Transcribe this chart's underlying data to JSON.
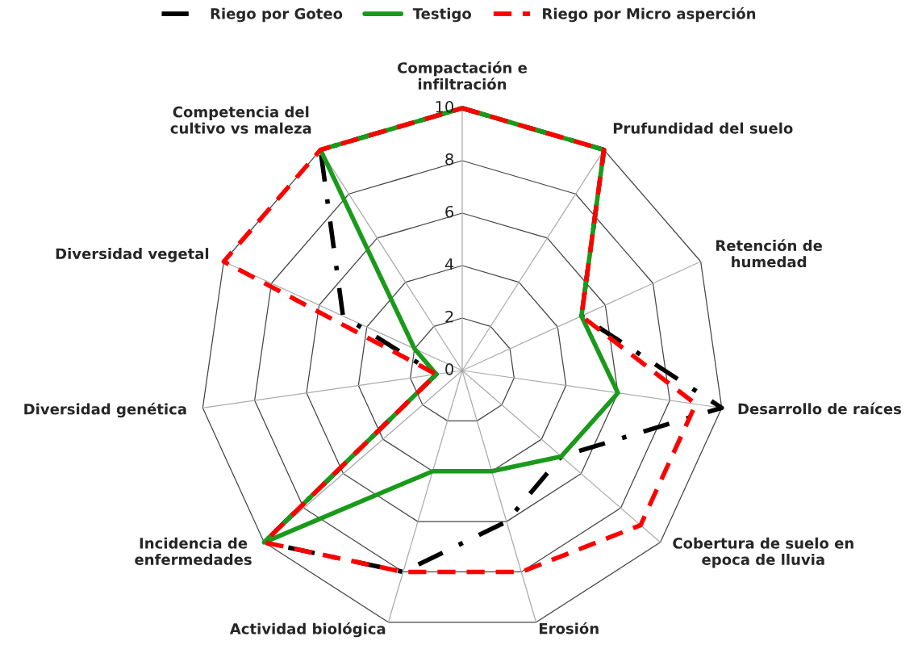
{
  "chart_data": {
    "type": "radar",
    "categories": [
      "Compactación e\ninfiltración",
      "Prufundidad del suelo",
      "Retención de\nhumedad",
      "Desarrollo de raíces",
      "Cobertura de suelo en\nepoca de lluvia",
      "Erosión",
      "Actividad biológica",
      "Incidencia de\nenfermedades",
      "Diversidad genética",
      "Diversidad vegetal",
      "Competencia del\ncultivo vs maleza"
    ],
    "series": [
      {
        "name": "Riego por Goteo",
        "color": "#000000",
        "line_style": "dashdot",
        "values": [
          10,
          10,
          5,
          10,
          5,
          6,
          8,
          10,
          1,
          5,
          10
        ]
      },
      {
        "name": "Testigo",
        "color": "#1a9a1a",
        "line_style": "solid",
        "values": [
          10,
          10,
          5,
          6,
          5,
          4,
          4,
          10,
          1,
          2,
          10
        ]
      },
      {
        "name": "Riego por Micro asperción",
        "color": "#ff0000",
        "line_style": "dashed",
        "values": [
          10,
          10,
          5,
          9,
          9,
          8,
          8,
          10,
          1,
          10,
          10
        ]
      }
    ],
    "ylim": [
      0,
      10
    ],
    "yticks": [
      0,
      2,
      4,
      6,
      8,
      10
    ],
    "grid": true,
    "legend": "top"
  }
}
